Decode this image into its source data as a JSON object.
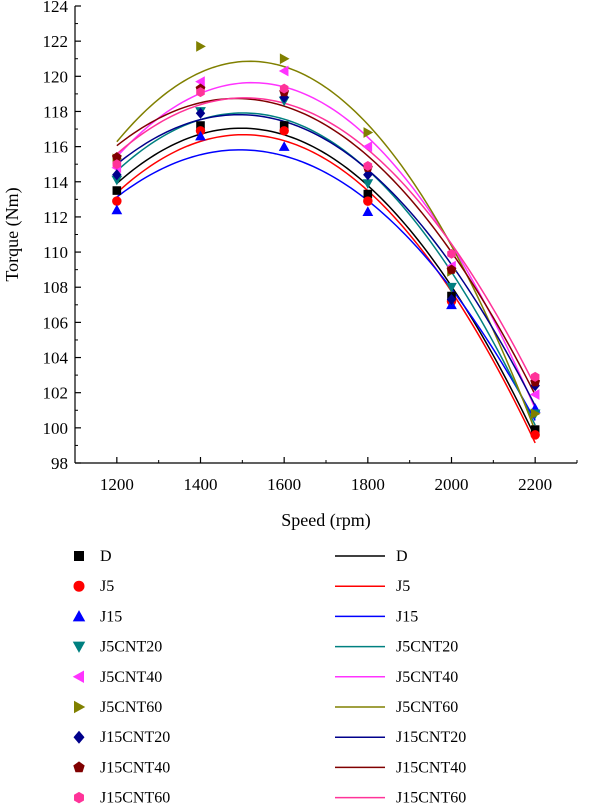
{
  "chart_data": {
    "type": "scatter",
    "title": "",
    "xlabel": "Speed (rpm)",
    "ylabel": "Torque (Nm)",
    "xlim": [
      1100,
      2300
    ],
    "ylim": [
      98,
      124
    ],
    "xticks": [
      1200,
      1400,
      1600,
      1800,
      2000,
      2200
    ],
    "yticks": [
      98,
      100,
      102,
      104,
      106,
      108,
      110,
      112,
      114,
      116,
      118,
      120,
      122,
      124
    ],
    "grid": false,
    "legend_placement": "bottom",
    "x": [
      1200,
      1400,
      1600,
      1800,
      2000,
      2200
    ],
    "series": [
      {
        "name": "D",
        "line_name": "D",
        "marker": "square",
        "color": "#000000",
        "values": [
          113.5,
          117.2,
          117.2,
          113.3,
          107.5,
          99.9
        ],
        "fit_peak": 117.6
      },
      {
        "name": "J5",
        "line_name": "J5",
        "marker": "circle",
        "color": "#ff0000",
        "values": [
          112.9,
          116.9,
          116.9,
          112.9,
          107.2,
          99.6
        ],
        "fit_peak": 117.2
      },
      {
        "name": "J15",
        "line_name": "J15",
        "marker": "triangle-up",
        "color": "#0000ff",
        "values": [
          112.4,
          116.6,
          116.0,
          112.3,
          107.0,
          101.1
        ],
        "fit_peak": 116.7
      },
      {
        "name": "J5CNT20",
        "line_name": "J5CNT20",
        "marker": "triangle-down",
        "color": "#008080",
        "values": [
          114.1,
          118.0,
          118.6,
          113.9,
          108.0,
          100.8
        ],
        "fit_peak": 118.8
      },
      {
        "name": "J5CNT40",
        "line_name": "J5CNT40",
        "marker": "triangle-left",
        "color": "#ff33ff",
        "values": [
          114.8,
          119.7,
          120.3,
          116.0,
          109.2,
          101.9
        ],
        "fit_peak": 120.7
      },
      {
        "name": "J5CNT60",
        "line_name": "J5CNT60",
        "marker": "triangle-right",
        "color": "#808000",
        "values": [
          115.3,
          121.7,
          121.0,
          116.8,
          108.9,
          100.8
        ],
        "fit_peak": 122.1
      },
      {
        "name": "J15CNT20",
        "line_name": "J15CNT20",
        "marker": "diamond",
        "color": "#00008b",
        "values": [
          114.4,
          117.9,
          118.8,
          114.4,
          107.3,
          102.4
        ],
        "fit_peak": 119.0
      },
      {
        "name": "J15CNT40",
        "line_name": "J15CNT40",
        "marker": "pentagon",
        "color": "#800000",
        "values": [
          115.4,
          119.3,
          119.1,
          114.8,
          109.0,
          102.6
        ],
        "fit_peak": 119.7
      },
      {
        "name": "J15CNT60",
        "line_name": "J15CNT60",
        "marker": "hexagon",
        "color": "#ff3399",
        "values": [
          115.0,
          119.1,
          119.3,
          114.9,
          109.9,
          102.9
        ],
        "fit_peak": 119.5
      }
    ]
  }
}
